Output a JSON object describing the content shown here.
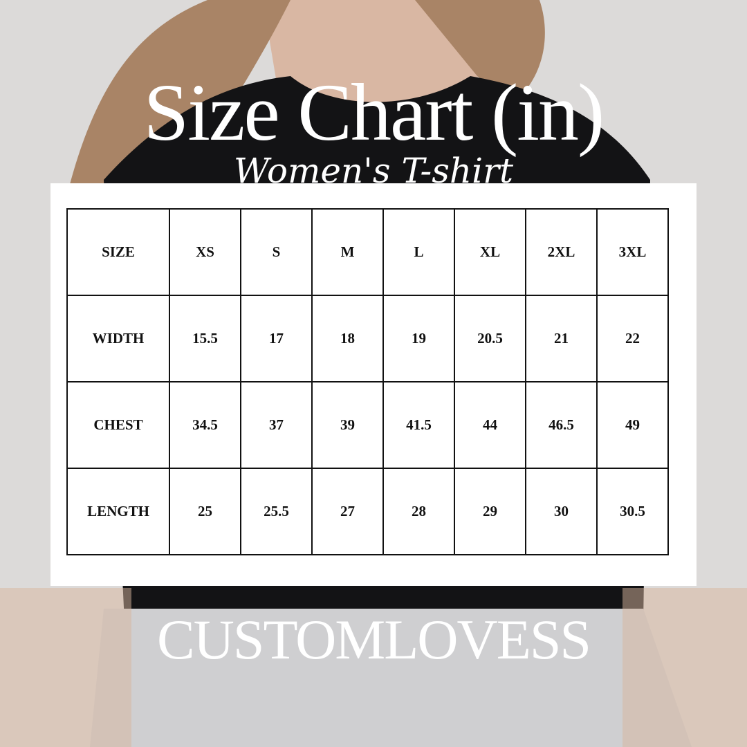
{
  "title": "Size Chart (in)",
  "subtitle": "Women's T-shirt",
  "table": {
    "header": [
      "SIZE",
      "XS",
      "S",
      "M",
      "L",
      "XL",
      "2XL",
      "3XL"
    ],
    "rows": [
      [
        "WIDTH",
        15.5,
        17,
        18,
        19,
        20.5,
        21,
        22
      ],
      [
        "CHEST",
        34.5,
        37,
        39,
        41.5,
        44,
        46.5,
        49
      ],
      [
        "LENGTH",
        25,
        25.5,
        27,
        28,
        29,
        30,
        30.5
      ]
    ]
  },
  "brand": "CUSTOMLOVESS"
}
